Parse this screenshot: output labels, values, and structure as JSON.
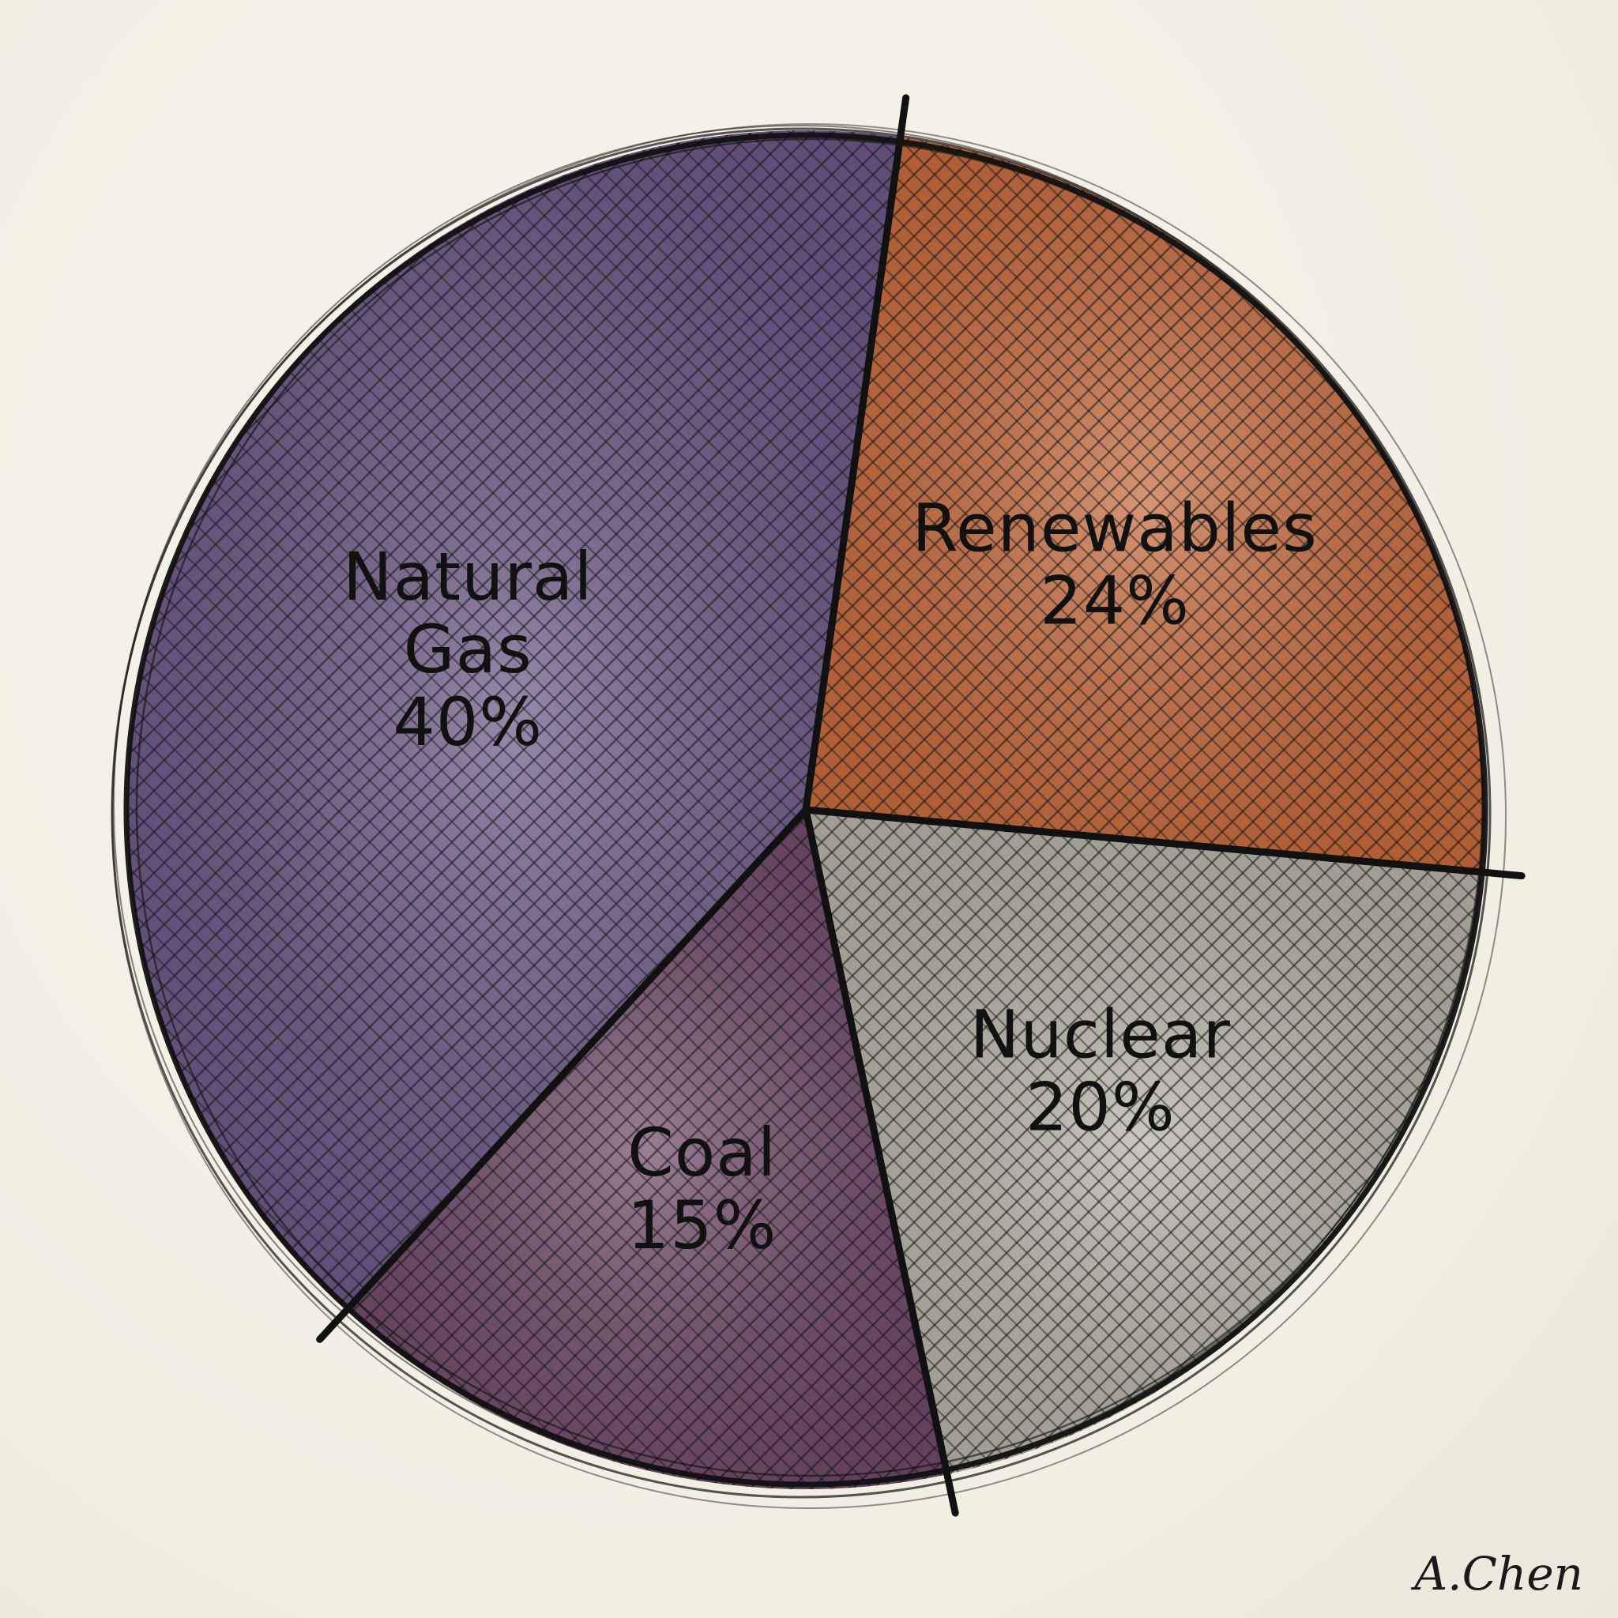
{
  "chart_data": {
    "type": "pie",
    "title": "",
    "slices": [
      {
        "label": "Renewables",
        "label_lines": [
          "Renewables"
        ],
        "value": 24,
        "value_text": "24%",
        "color": "#c4683b"
      },
      {
        "label": "Nuclear",
        "label_lines": [
          "Nuclear"
        ],
        "value": 20,
        "value_text": "20%",
        "color": "#b4b0a6"
      },
      {
        "label": "Coal",
        "label_lines": [
          "Coal"
        ],
        "value": 15,
        "value_text": "15%",
        "color": "#6e4868"
      },
      {
        "label": "Natural Gas",
        "label_lines": [
          "Natural",
          "Gas"
        ],
        "value": 40,
        "value_text": "40%",
        "color": "#6a5684"
      }
    ],
    "legend": "none",
    "style": "hand-drawn watercolor with crosshatching"
  },
  "signature": "A.Chen",
  "colors": {
    "background": "#f4f1e6",
    "outline": "#111111"
  }
}
